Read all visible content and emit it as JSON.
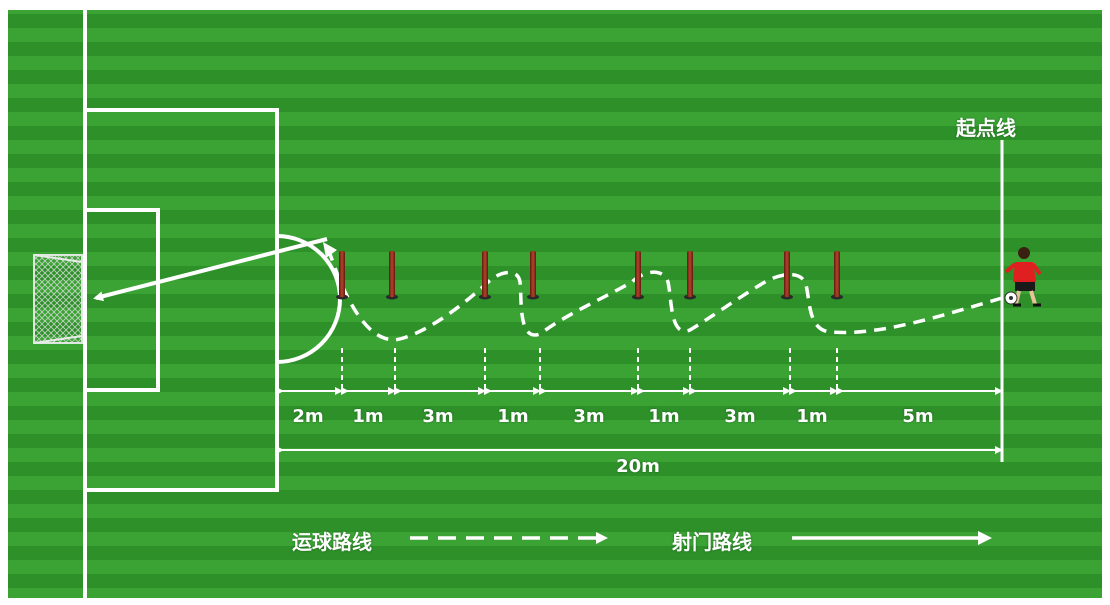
{
  "labels": {
    "start_line": "起点线",
    "segments": [
      "2m",
      "1m",
      "3m",
      "1m",
      "3m",
      "1m",
      "3m",
      "1m",
      "5m"
    ],
    "total": "20m"
  },
  "legend": {
    "dribble_route": "运球路线",
    "shooting_route": "射门路线"
  },
  "colors": {
    "grass_light": "#3aa334",
    "grass_dark": "#2d9029",
    "lines": "#ffffff",
    "pole": "#8b2a1c",
    "player_shirt": "#e02020"
  }
}
